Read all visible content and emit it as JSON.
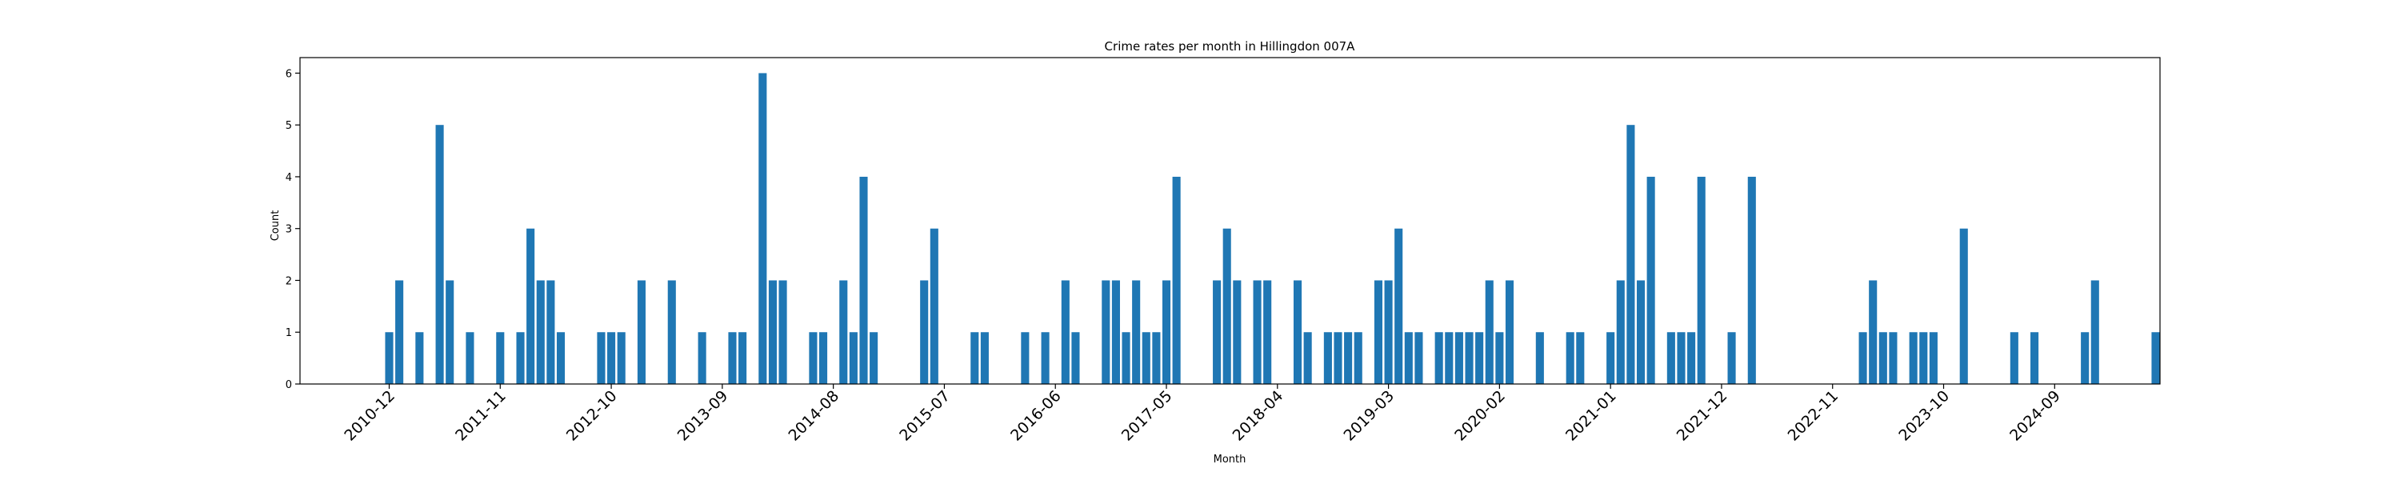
{
  "chart_data": {
    "type": "bar",
    "title": "Crime rates per month in Hillingdon 007A",
    "xlabel": "Month",
    "ylabel": "Count",
    "ylim": [
      0,
      6.3
    ],
    "y_ticks": [
      0,
      1,
      2,
      3,
      4,
      5,
      6
    ],
    "x_tick_labels": [
      "2010-12",
      "2011-11",
      "2012-10",
      "2013-09",
      "2014-08",
      "2015-07",
      "2016-06",
      "2017-05",
      "2018-04",
      "2019-03",
      "2020-02",
      "2021-01",
      "2021-12",
      "2022-11",
      "2023-10",
      "2024-09"
    ],
    "grid": false,
    "bar_color": "#1f77b4",
    "categories": [
      "2010-12",
      "2011-01",
      "2011-03",
      "2011-05",
      "2011-06",
      "2011-08",
      "2011-11",
      "2012-01",
      "2012-02",
      "2012-03",
      "2012-04",
      "2012-05",
      "2012-09",
      "2012-10",
      "2012-11",
      "2013-01",
      "2013-04",
      "2013-07",
      "2013-10",
      "2013-11",
      "2014-01",
      "2014-02",
      "2014-03",
      "2014-06",
      "2014-07",
      "2014-09",
      "2014-10",
      "2014-11",
      "2014-12",
      "2015-05",
      "2015-06",
      "2015-10",
      "2015-11",
      "2016-03",
      "2016-05",
      "2016-07",
      "2016-08",
      "2016-11",
      "2016-12",
      "2017-01",
      "2017-02",
      "2017-03",
      "2017-04",
      "2017-05",
      "2017-06",
      "2017-10",
      "2017-11",
      "2017-12",
      "2018-02",
      "2018-03",
      "2018-06",
      "2018-07",
      "2018-09",
      "2018-10",
      "2018-11",
      "2018-12",
      "2019-02",
      "2019-03",
      "2019-04",
      "2019-05",
      "2019-06",
      "2019-08",
      "2019-09",
      "2019-10",
      "2019-11",
      "2019-12",
      "2020-01",
      "2020-02",
      "2020-03",
      "2020-06",
      "2020-09",
      "2020-10",
      "2021-01",
      "2021-02",
      "2021-03",
      "2021-04",
      "2021-05",
      "2021-07",
      "2021-08",
      "2021-09",
      "2021-10",
      "2022-01",
      "2022-03",
      "2023-02",
      "2023-03",
      "2023-04",
      "2023-05",
      "2023-07",
      "2023-08",
      "2023-09",
      "2023-12",
      "2024-05",
      "2024-07",
      "2024-12",
      "2025-01",
      "2025-07"
    ],
    "values": [
      1,
      2,
      1,
      5,
      2,
      1,
      1,
      1,
      3,
      2,
      2,
      1,
      1,
      1,
      1,
      2,
      2,
      1,
      1,
      1,
      6,
      2,
      2,
      1,
      1,
      2,
      1,
      4,
      1,
      2,
      3,
      1,
      1,
      1,
      1,
      2,
      1,
      2,
      2,
      1,
      2,
      1,
      1,
      2,
      4,
      2,
      3,
      2,
      2,
      2,
      2,
      1,
      1,
      1,
      1,
      1,
      2,
      2,
      3,
      1,
      1,
      1,
      1,
      1,
      1,
      1,
      2,
      1,
      2,
      1,
      1,
      1,
      1,
      2,
      5,
      2,
      4,
      1,
      1,
      1,
      4,
      1,
      4,
      1,
      2,
      1,
      1,
      1,
      1,
      1,
      3,
      1,
      1,
      1,
      2,
      1
    ]
  }
}
